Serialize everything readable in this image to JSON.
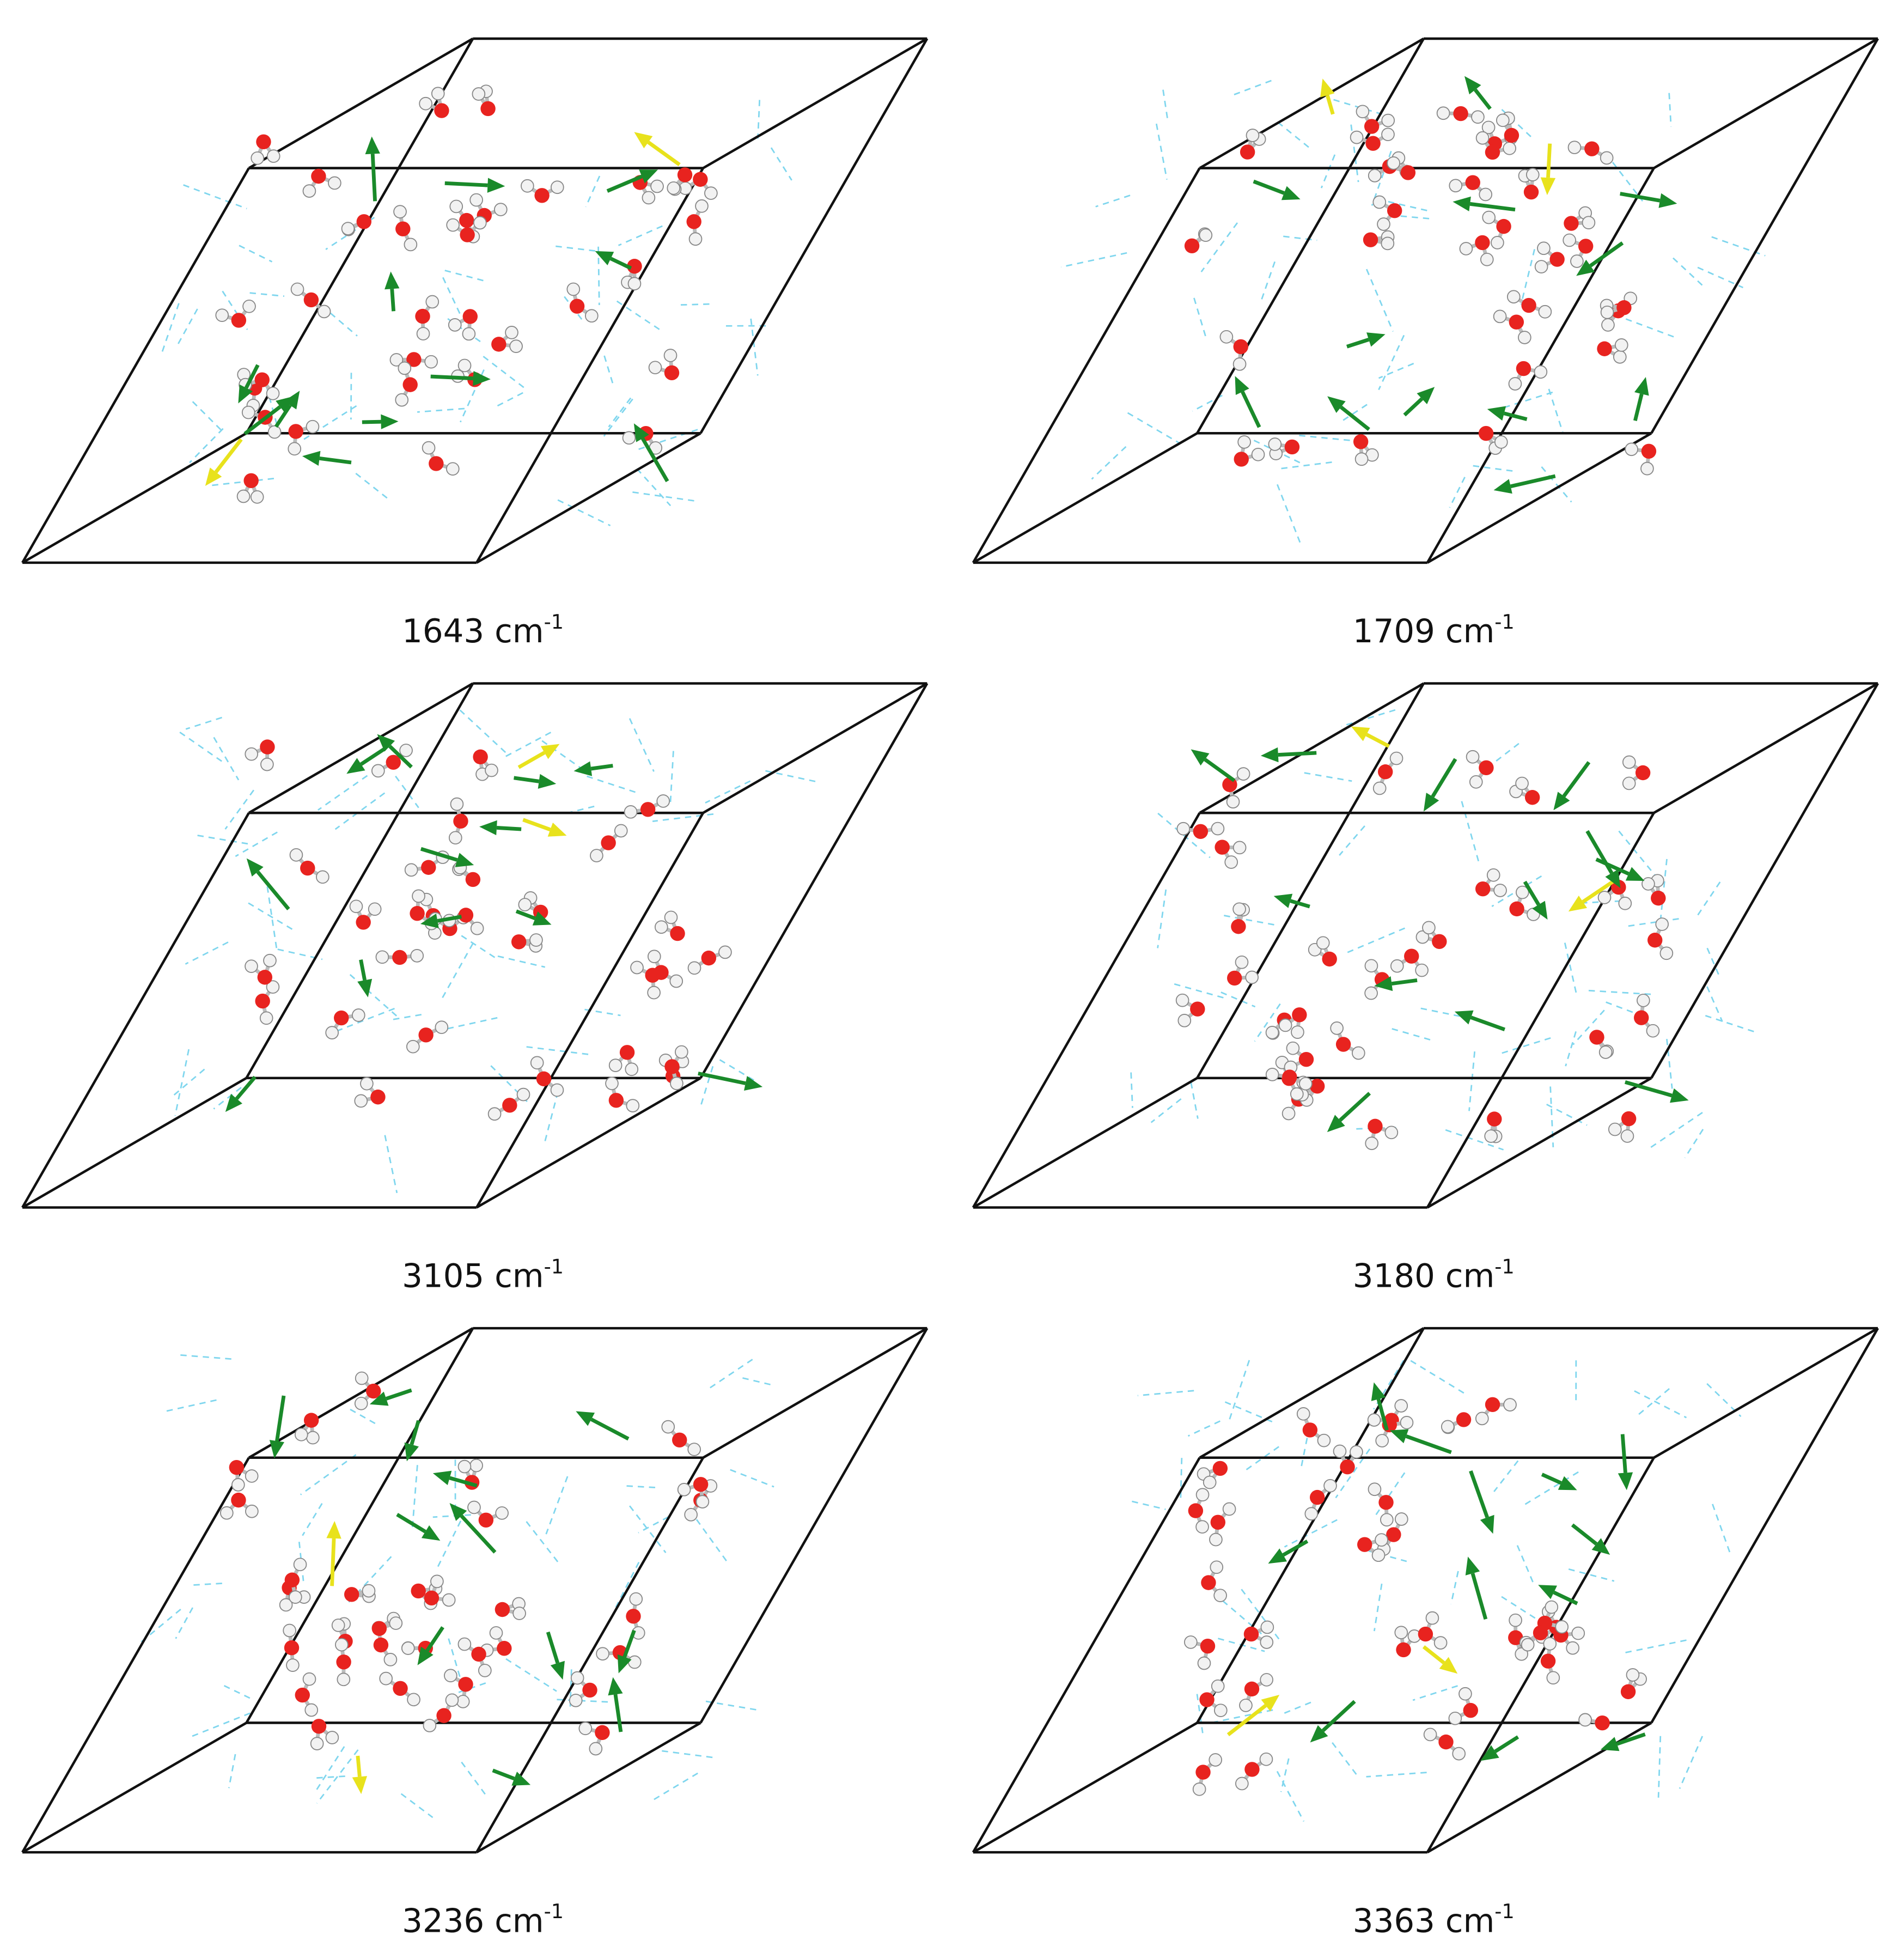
{
  "panels": [
    {
      "label": "1643 cm",
      "superscript": "-1"
    },
    {
      "label": "1709 cm",
      "superscript": "-1"
    },
    {
      "label": "3105 cm",
      "superscript": "-1"
    },
    {
      "label": "3180 cm",
      "superscript": "-1"
    },
    {
      "label": "3236 cm",
      "superscript": "-1"
    },
    {
      "label": "3363 cm",
      "superscript": "-1"
    }
  ]
}
